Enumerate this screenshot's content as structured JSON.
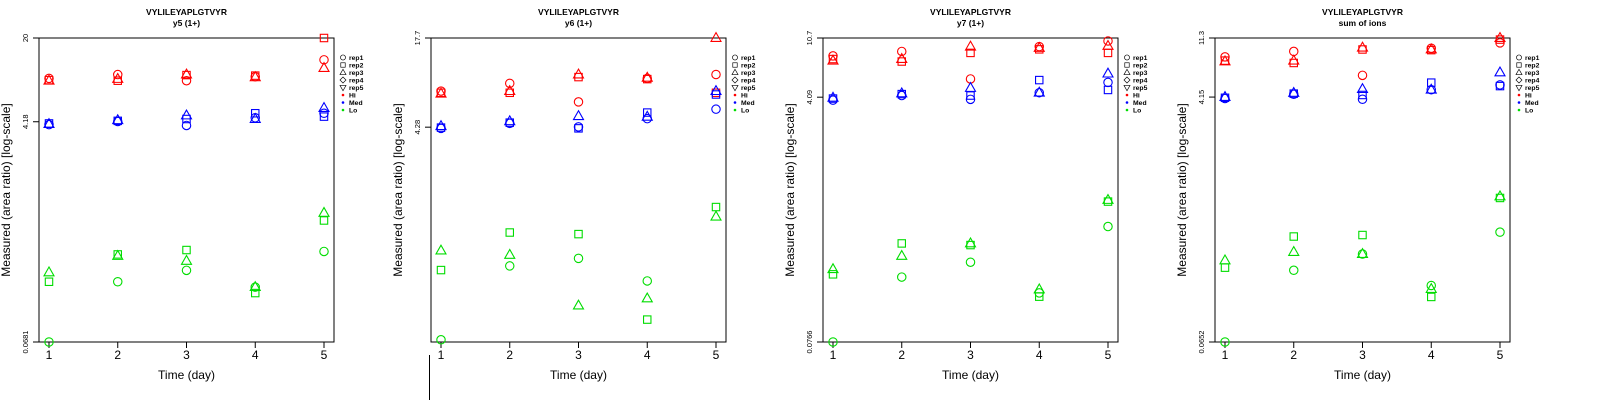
{
  "legend": {
    "shapes": [
      {
        "label": "rep1",
        "shape": "circle"
      },
      {
        "label": "rep2",
        "shape": "square"
      },
      {
        "label": "rep3",
        "shape": "triangle-up"
      },
      {
        "label": "rep4",
        "shape": "diamond"
      },
      {
        "label": "rep5",
        "shape": "triangle-down"
      }
    ],
    "groups": [
      {
        "label": "Hi",
        "color": "#ff0000"
      },
      {
        "label": "Med",
        "color": "#0000ff"
      },
      {
        "label": "Lo",
        "color": "#00dd00"
      }
    ]
  },
  "colors": {
    "Hi": "#ff0000",
    "Med": "#0000ff",
    "Lo": "#00dd00",
    "axis": "#000000"
  },
  "chart_data": [
    {
      "type": "scatter",
      "title": "VYLILEYAPLGTVYR",
      "subtitle": "y5 (1+)",
      "xlabel": "Time (day)",
      "ylabel": "Measured (area ratio) [log-scale]",
      "y_scale": "log",
      "x_ticks": [
        1,
        2,
        3,
        4,
        5
      ],
      "y_ticks": [
        {
          "value": 0.0681,
          "label": "0.0681"
        },
        {
          "value": 4.18,
          "label": "4.18"
        },
        {
          "value": 20,
          "label": "20"
        }
      ],
      "ylim": [
        0.0681,
        20
      ],
      "legend_position": "right",
      "grid": false,
      "series": [
        {
          "name": "Hi",
          "shape": "circle",
          "points": [
            [
              1,
              9.4
            ],
            [
              2,
              10.1
            ],
            [
              3,
              9.0
            ],
            [
              4,
              9.7
            ],
            [
              5,
              13.3
            ]
          ]
        },
        {
          "name": "Hi",
          "shape": "square",
          "points": [
            [
              1,
              9.1
            ],
            [
              2,
              9.0
            ],
            [
              3,
              10.0
            ],
            [
              4,
              9.9
            ],
            [
              5,
              20.0
            ]
          ]
        },
        {
          "name": "Hi",
          "shape": "triangle-up",
          "points": [
            [
              1,
              9.0
            ],
            [
              2,
              9.3
            ],
            [
              3,
              10.1
            ],
            [
              4,
              9.6
            ],
            [
              5,
              11.4
            ]
          ]
        },
        {
          "name": "Med",
          "shape": "circle",
          "points": [
            [
              1,
              3.96
            ],
            [
              2,
              4.2
            ],
            [
              3,
              3.9
            ],
            [
              4,
              4.5
            ],
            [
              5,
              4.9
            ]
          ]
        },
        {
          "name": "Med",
          "shape": "square",
          "points": [
            [
              1,
              4.05
            ],
            [
              2,
              4.25
            ],
            [
              3,
              4.4
            ],
            [
              4,
              4.9
            ],
            [
              5,
              4.6
            ]
          ]
        },
        {
          "name": "Med",
          "shape": "triangle-up",
          "points": [
            [
              1,
              4.0
            ],
            [
              2,
              4.3
            ],
            [
              3,
              4.7
            ],
            [
              4,
              4.4
            ],
            [
              5,
              5.4
            ]
          ]
        },
        {
          "name": "Lo",
          "shape": "circle",
          "points": [
            [
              1,
              0.0681
            ],
            [
              2,
              0.21
            ],
            [
              3,
              0.26
            ],
            [
              4,
              0.19
            ],
            [
              5,
              0.37
            ]
          ]
        },
        {
          "name": "Lo",
          "shape": "square",
          "points": [
            [
              1,
              0.21
            ],
            [
              2,
              0.35
            ],
            [
              3,
              0.38
            ],
            [
              4,
              0.17
            ],
            [
              5,
              0.66
            ]
          ]
        },
        {
          "name": "Lo",
          "shape": "triangle-up",
          "points": [
            [
              1,
              0.25
            ],
            [
              2,
              0.34
            ],
            [
              3,
              0.31
            ],
            [
              4,
              0.19
            ],
            [
              5,
              0.76
            ]
          ]
        }
      ]
    },
    {
      "type": "scatter",
      "title": "VYLILEYAPLGTVYR",
      "subtitle": "y6 (1+)",
      "xlabel": "Time (day)",
      "ylabel": "Measured (area ratio) [log-scale]",
      "y_scale": "log",
      "x_ticks": [
        1,
        2,
        3,
        4,
        5
      ],
      "y_ticks": [
        {
          "value": 4.28,
          "label": "4.28"
        },
        {
          "value": 17.7,
          "label": "17.7"
        }
      ],
      "ylim": [
        0.14,
        17.7
      ],
      "legend_position": "right",
      "grid": false,
      "series": [
        {
          "name": "Hi",
          "shape": "circle",
          "points": [
            [
              1,
              7.6
            ],
            [
              2,
              8.6
            ],
            [
              3,
              6.4
            ],
            [
              4,
              9.3
            ],
            [
              5,
              9.9
            ]
          ]
        },
        {
          "name": "Hi",
          "shape": "square",
          "points": [
            [
              1,
              7.4
            ],
            [
              2,
              7.4
            ],
            [
              3,
              9.5
            ],
            [
              4,
              9.2
            ],
            [
              5,
              7.4
            ]
          ]
        },
        {
          "name": "Hi",
          "shape": "triangle-up",
          "points": [
            [
              1,
              7.3
            ],
            [
              2,
              7.6
            ],
            [
              3,
              9.9
            ],
            [
              4,
              9.4
            ],
            [
              5,
              17.7
            ]
          ]
        },
        {
          "name": "Med",
          "shape": "circle",
          "points": [
            [
              1,
              4.2
            ],
            [
              2,
              4.55
            ],
            [
              3,
              4.3
            ],
            [
              4,
              4.9
            ],
            [
              5,
              5.7
            ]
          ]
        },
        {
          "name": "Med",
          "shape": "square",
          "points": [
            [
              1,
              4.25
            ],
            [
              2,
              4.6
            ],
            [
              3,
              4.2
            ],
            [
              4,
              5.4
            ],
            [
              5,
              7.2
            ]
          ]
        },
        {
          "name": "Med",
          "shape": "triangle-up",
          "points": [
            [
              1,
              4.35
            ],
            [
              2,
              4.7
            ],
            [
              3,
              5.1
            ],
            [
              4,
              5.05
            ],
            [
              5,
              7.6
            ]
          ]
        },
        {
          "name": "Lo",
          "shape": "circle",
          "points": [
            [
              1,
              0.145
            ],
            [
              2,
              0.47
            ],
            [
              3,
              0.53
            ],
            [
              4,
              0.37
            ],
            [
              5,
              null
            ]
          ]
        },
        {
          "name": "Lo",
          "shape": "square",
          "points": [
            [
              1,
              0.44
            ],
            [
              2,
              0.8
            ],
            [
              3,
              0.78
            ],
            [
              4,
              0.2
            ],
            [
              5,
              1.2
            ]
          ]
        },
        {
          "name": "Lo",
          "shape": "triangle-up",
          "points": [
            [
              1,
              0.6
            ],
            [
              2,
              0.56
            ],
            [
              3,
              0.25
            ],
            [
              4,
              0.28
            ],
            [
              5,
              1.03
            ]
          ]
        }
      ]
    },
    {
      "type": "scatter",
      "title": "VYLILEYAPLGTVYR",
      "subtitle": "y7 (1+)",
      "xlabel": "Time (day)",
      "ylabel": "Measured (area ratio) [log-scale]",
      "y_scale": "log",
      "x_ticks": [
        1,
        2,
        3,
        4,
        5
      ],
      "y_ticks": [
        {
          "value": 0.0766,
          "label": "0.0766"
        },
        {
          "value": 4.09,
          "label": "4.09"
        },
        {
          "value": 10.7,
          "label": "10.7"
        }
      ],
      "ylim": [
        0.0766,
        10.7
      ],
      "legend_position": "right",
      "grid": false,
      "series": [
        {
          "name": "Hi",
          "shape": "circle",
          "points": [
            [
              1,
              8.0
            ],
            [
              2,
              8.6
            ],
            [
              3,
              5.5
            ],
            [
              4,
              9.3
            ],
            [
              5,
              10.2
            ]
          ]
        },
        {
          "name": "Hi",
          "shape": "square",
          "points": [
            [
              1,
              7.6
            ],
            [
              2,
              7.3
            ],
            [
              3,
              8.4
            ],
            [
              4,
              8.9
            ],
            [
              5,
              8.4
            ]
          ]
        },
        {
          "name": "Hi",
          "shape": "triangle-up",
          "points": [
            [
              1,
              7.4
            ],
            [
              2,
              7.6
            ],
            [
              3,
              9.3
            ],
            [
              4,
              9.1
            ],
            [
              5,
              9.4
            ]
          ]
        },
        {
          "name": "Med",
          "shape": "circle",
          "points": [
            [
              1,
              3.9
            ],
            [
              2,
              4.2
            ],
            [
              3,
              3.95
            ],
            [
              4,
              4.4
            ],
            [
              5,
              5.2
            ]
          ]
        },
        {
          "name": "Med",
          "shape": "square",
          "points": [
            [
              1,
              4.0
            ],
            [
              2,
              4.3
            ],
            [
              3,
              4.2
            ],
            [
              4,
              5.4
            ],
            [
              5,
              4.6
            ]
          ]
        },
        {
          "name": "Med",
          "shape": "triangle-up",
          "points": [
            [
              1,
              4.05
            ],
            [
              2,
              4.35
            ],
            [
              3,
              4.75
            ],
            [
              4,
              4.4
            ],
            [
              5,
              6.0
            ]
          ]
        },
        {
          "name": "Lo",
          "shape": "circle",
          "points": [
            [
              1,
              0.0766
            ],
            [
              2,
              0.22
            ],
            [
              3,
              0.28
            ],
            [
              4,
              0.17
            ],
            [
              5,
              0.5
            ]
          ]
        },
        {
          "name": "Lo",
          "shape": "square",
          "points": [
            [
              1,
              0.23
            ],
            [
              2,
              0.38
            ],
            [
              3,
              0.37
            ],
            [
              4,
              0.16
            ],
            [
              5,
              0.75
            ]
          ]
        },
        {
          "name": "Lo",
          "shape": "triangle-up",
          "points": [
            [
              1,
              0.25
            ],
            [
              2,
              0.31
            ],
            [
              3,
              0.38
            ],
            [
              4,
              0.18
            ],
            [
              5,
              0.77
            ]
          ]
        }
      ]
    },
    {
      "type": "scatter",
      "title": "VYLILEYAPLGTVYR",
      "subtitle": "sum of ions",
      "xlabel": "Time (day)",
      "ylabel": "Measured (area ratio) [log-scale]",
      "y_scale": "log",
      "x_ticks": [
        1,
        2,
        3,
        4,
        5
      ],
      "y_ticks": [
        {
          "value": 0.0652,
          "label": "0.0652"
        },
        {
          "value": 4.15,
          "label": "4.15"
        },
        {
          "value": 11.3,
          "label": "11.3"
        }
      ],
      "ylim": [
        0.0652,
        11.3
      ],
      "legend_position": "right",
      "grid": false,
      "series": [
        {
          "name": "Hi",
          "shape": "circle",
          "points": [
            [
              1,
              8.2
            ],
            [
              2,
              9.0
            ],
            [
              3,
              6.0
            ],
            [
              4,
              9.5
            ],
            [
              5,
              10.4
            ]
          ]
        },
        {
          "name": "Hi",
          "shape": "square",
          "points": [
            [
              1,
              7.7
            ],
            [
              2,
              7.4
            ],
            [
              3,
              9.3
            ],
            [
              4,
              9.2
            ],
            [
              5,
              11.0
            ]
          ]
        },
        {
          "name": "Hi",
          "shape": "triangle-up",
          "points": [
            [
              1,
              7.6
            ],
            [
              2,
              7.7
            ],
            [
              3,
              9.6
            ],
            [
              4,
              9.3
            ],
            [
              5,
              11.3
            ]
          ]
        },
        {
          "name": "Med",
          "shape": "circle",
          "points": [
            [
              1,
              4.05
            ],
            [
              2,
              4.35
            ],
            [
              3,
              4.0
            ],
            [
              4,
              4.7
            ],
            [
              5,
              5.1
            ]
          ]
        },
        {
          "name": "Med",
          "shape": "square",
          "points": [
            [
              1,
              4.1
            ],
            [
              2,
              4.4
            ],
            [
              3,
              4.3
            ],
            [
              4,
              5.3
            ],
            [
              5,
              5.0
            ]
          ]
        },
        {
          "name": "Med",
          "shape": "triangle-up",
          "points": [
            [
              1,
              4.15
            ],
            [
              2,
              4.45
            ],
            [
              3,
              4.75
            ],
            [
              4,
              4.7
            ],
            [
              5,
              6.3
            ]
          ]
        },
        {
          "name": "Lo",
          "shape": "circle",
          "points": [
            [
              1,
              0.0652
            ],
            [
              2,
              0.22
            ],
            [
              3,
              0.29
            ],
            [
              4,
              0.17
            ],
            [
              5,
              0.42
            ]
          ]
        },
        {
          "name": "Lo",
          "shape": "square",
          "points": [
            [
              1,
              0.23
            ],
            [
              2,
              0.39
            ],
            [
              3,
              0.4
            ],
            [
              4,
              0.14
            ],
            [
              5,
              0.75
            ]
          ]
        },
        {
          "name": "Lo",
          "shape": "triangle-up",
          "points": [
            [
              1,
              0.26
            ],
            [
              2,
              0.3
            ],
            [
              3,
              0.29
            ],
            [
              4,
              0.16
            ],
            [
              5,
              0.77
            ]
          ]
        }
      ]
    }
  ]
}
